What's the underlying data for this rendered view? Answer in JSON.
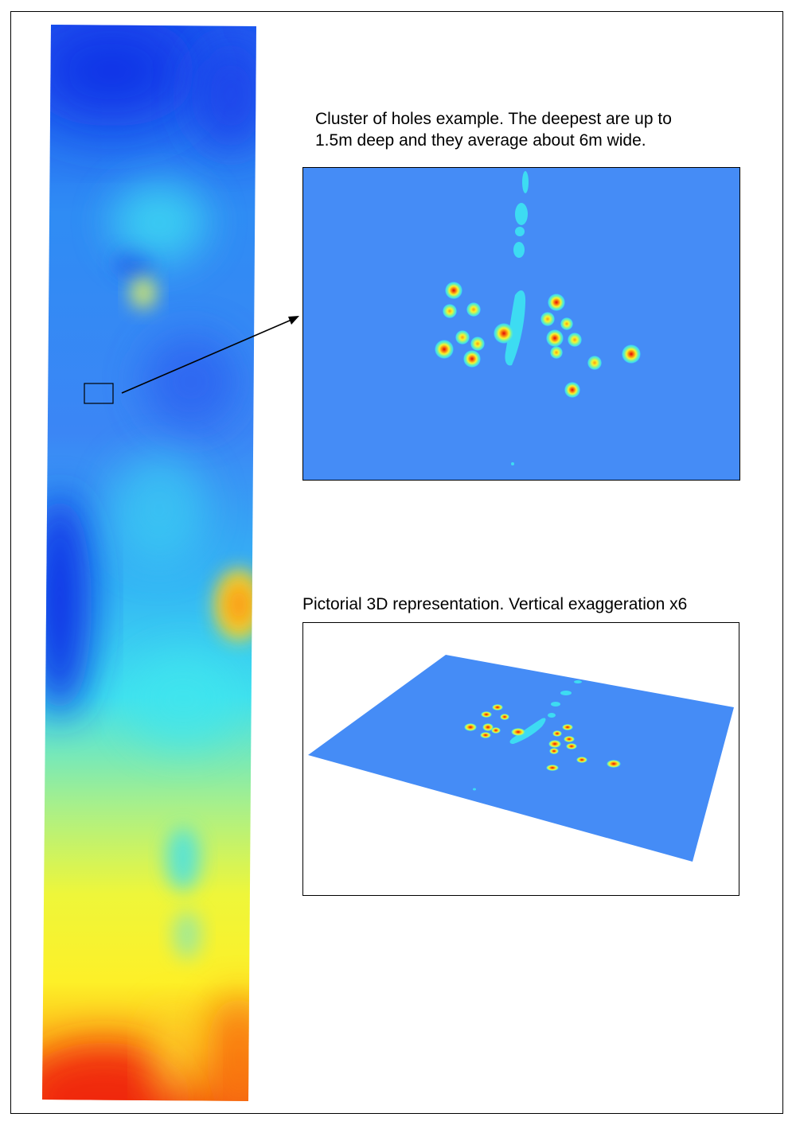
{
  "captions": {
    "top_line1": "Cluster of holes example. The deepest are up to",
    "top_line2": "1.5m deep and they average about 6m wide.",
    "bottom": "Pictorial 3D representation. Vertical exaggeration x6"
  },
  "colors": {
    "background_blue": "#458cf6",
    "light_cyan": "#3ddcf2",
    "deep_blue": "#0a2ee6",
    "yellow": "#f6f52e",
    "orange": "#fc8a10",
    "red": "#e8100a"
  }
}
